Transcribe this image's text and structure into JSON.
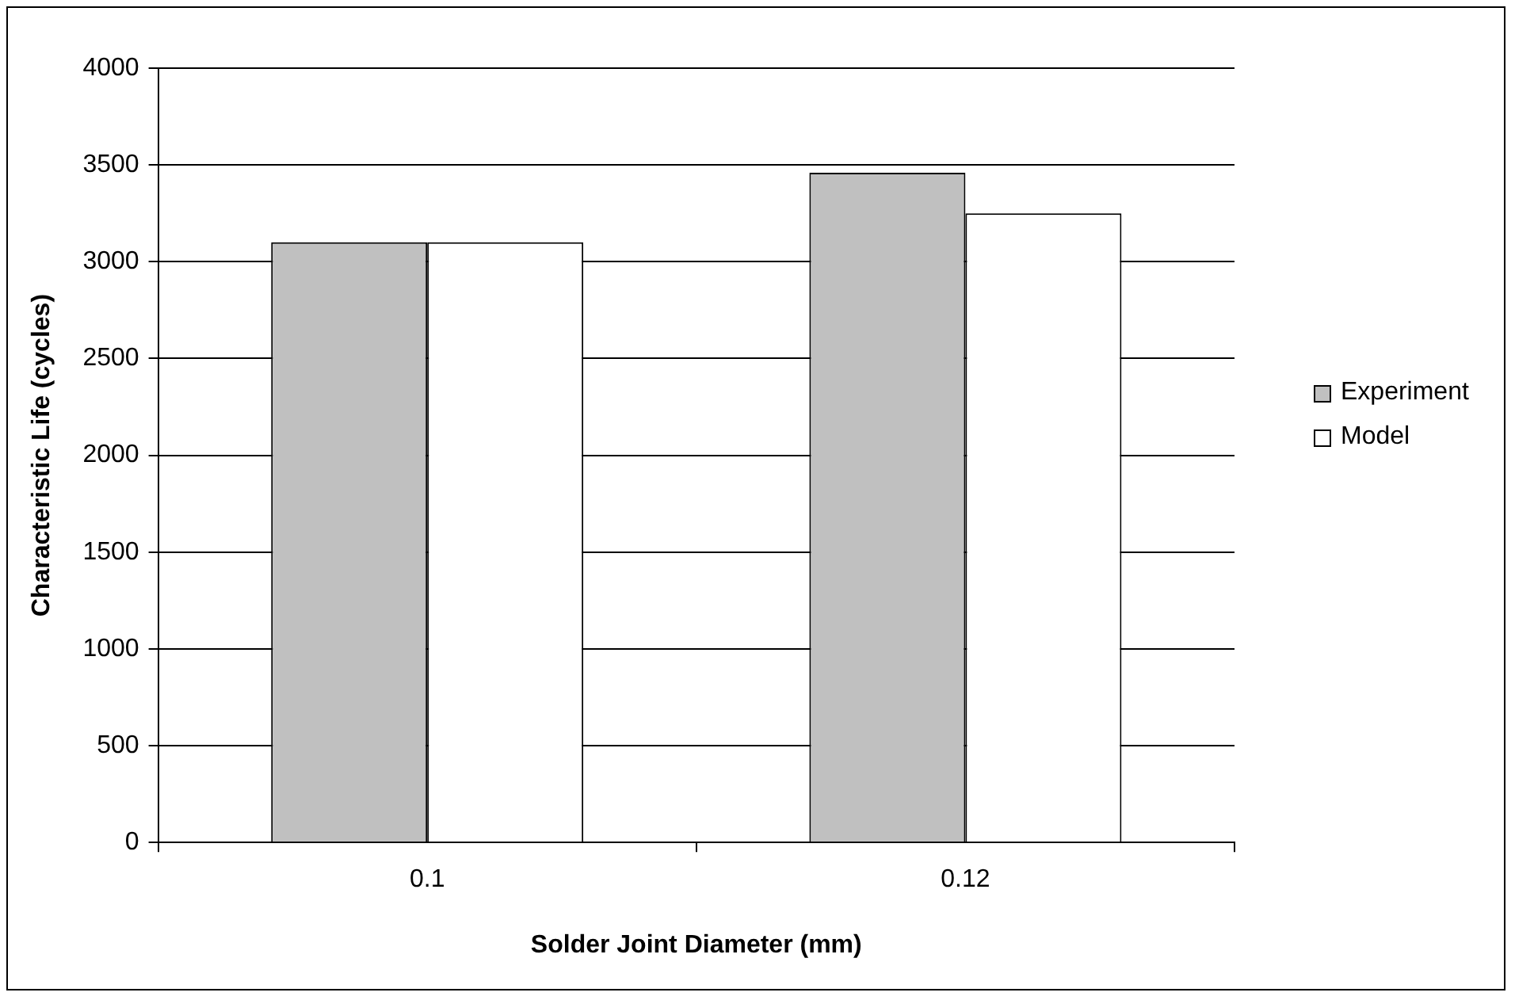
{
  "chart_data": {
    "type": "bar",
    "xlabel": "Solder Joint Diameter (mm)",
    "ylabel": "Characteristic Life (cycles)",
    "categories": [
      "0.1",
      "0.12"
    ],
    "series": [
      {
        "name": "Experiment",
        "color": "#c0c0c0",
        "values": [
          3100,
          3460
        ]
      },
      {
        "name": "Model",
        "color": "#ffffff",
        "values": [
          3100,
          3250
        ]
      }
    ],
    "ylim": [
      0,
      4000
    ],
    "yticks": [
      0,
      500,
      1000,
      1500,
      2000,
      2500,
      3000,
      3500,
      4000
    ],
    "grid": "y",
    "legend": "right"
  }
}
